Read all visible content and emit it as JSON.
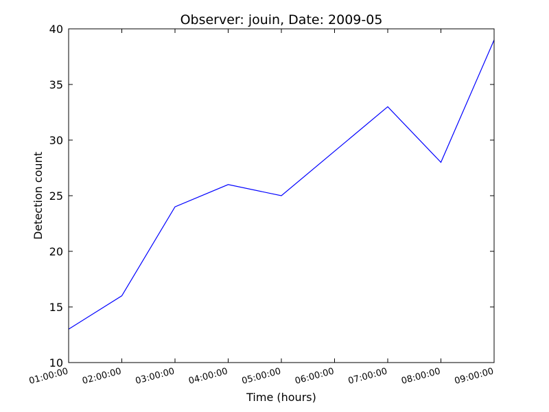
{
  "chart_data": {
    "type": "line",
    "title": "Observer: jouin, Date: 2009-05",
    "xlabel": "Time (hours)",
    "ylabel": "Detection count",
    "x": [
      "01:00:00",
      "02:00:00",
      "03:00:00",
      "04:00:00",
      "05:00:00",
      "06:00:00",
      "07:00:00",
      "08:00:00",
      "09:00:00"
    ],
    "x_tick_labels": [
      "01:00:00",
      "02:00:00",
      "03:00:00",
      "04:00:00",
      "05:00:00",
      "06:00:00",
      "07:00:00",
      "08:00:00",
      "09:00:00"
    ],
    "ylim": [
      10,
      40
    ],
    "y_ticks": [
      10,
      15,
      20,
      25,
      30,
      35,
      40
    ],
    "series": [
      {
        "color": "#0000ff",
        "values": [
          13,
          16,
          24,
          26,
          25,
          29,
          33,
          28,
          39
        ]
      }
    ],
    "grid": false,
    "legend": "none"
  }
}
